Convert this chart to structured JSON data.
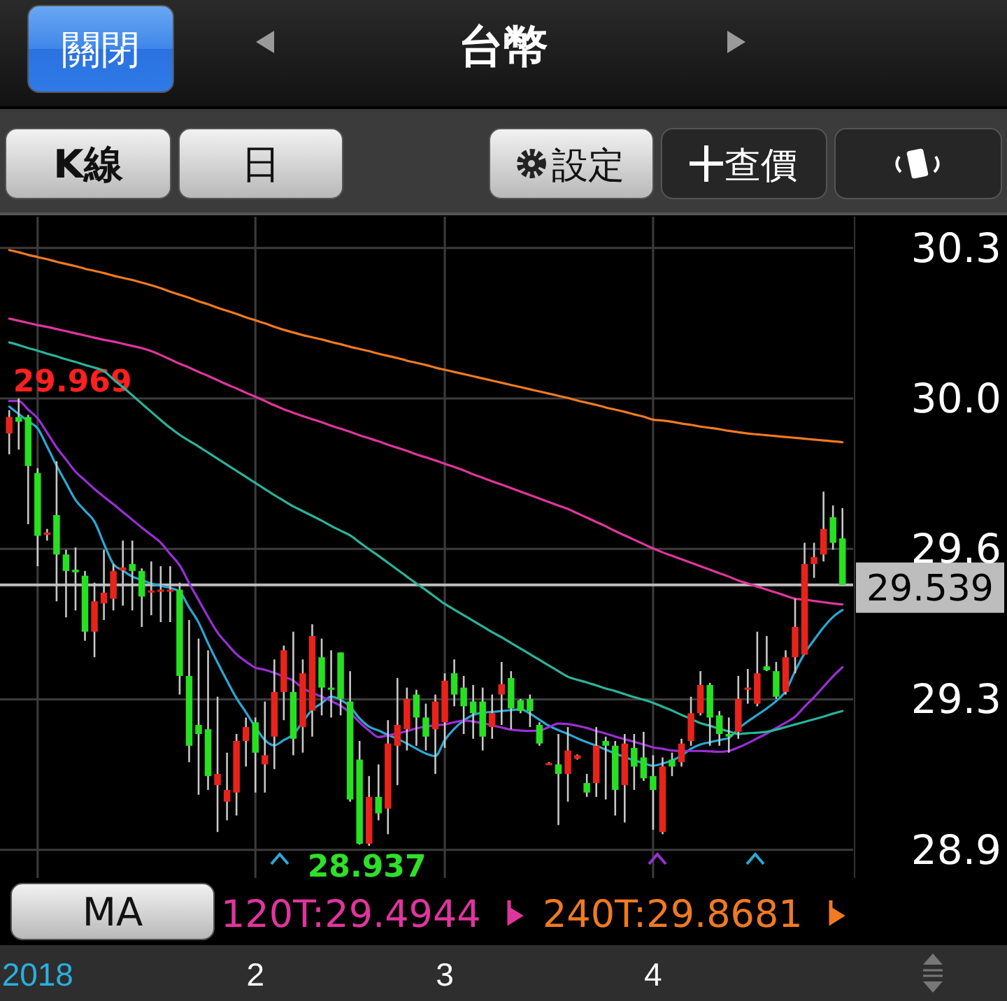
{
  "chart_data": {
    "type": "candlestick",
    "title": "台幣",
    "annotations": [
      "關閉",
      "K線",
      "日",
      "設定",
      "查價",
      "MA",
      "29.969",
      "28.937"
    ],
    "categories": [
      null,
      null,
      null,
      "2018",
      null,
      null,
      null,
      null,
      null,
      null,
      null,
      null,
      null,
      null,
      null,
      null,
      null,
      null,
      null,
      null,
      null,
      null,
      null,
      null,
      null,
      null,
      "2",
      null,
      null,
      null,
      null,
      null,
      null,
      null,
      null,
      null,
      null,
      null,
      null,
      null,
      null,
      null,
      null,
      null,
      null,
      null,
      "3",
      null,
      null,
      null,
      null,
      null,
      null,
      null,
      null,
      null,
      null,
      null,
      null,
      null,
      null,
      null,
      null,
      null,
      null,
      null,
      null,
      null,
      "4",
      null,
      null,
      null,
      null,
      null,
      null,
      null,
      null,
      null,
      null,
      null,
      null,
      null,
      null,
      null,
      null,
      null,
      null,
      null,
      null
    ],
    "ohlc": [
      [
        29.888,
        29.942,
        29.84,
        29.926
      ],
      [
        29.926,
        29.969,
        29.851,
        29.915
      ],
      [
        29.926,
        29.931,
        29.679,
        29.813
      ],
      [
        29.797,
        29.808,
        29.582,
        29.652
      ],
      [
        29.654,
        29.668,
        29.641,
        29.66
      ],
      [
        29.7,
        29.824,
        29.501,
        29.609
      ],
      [
        29.609,
        29.62,
        29.464,
        29.571
      ],
      [
        29.574,
        29.625,
        29.48,
        29.568
      ],
      [
        29.56,
        29.571,
        29.41,
        29.431
      ],
      [
        29.431,
        29.544,
        29.372,
        29.501
      ],
      [
        29.496,
        29.62,
        29.458,
        29.521
      ],
      [
        29.507,
        29.587,
        29.48,
        29.571
      ],
      [
        29.572,
        29.641,
        29.491,
        29.579
      ],
      [
        29.587,
        29.641,
        29.48,
        29.571
      ],
      [
        29.571,
        29.577,
        29.442,
        29.512
      ],
      [
        29.521,
        29.593,
        29.469,
        29.526
      ],
      [
        29.523,
        29.582,
        29.453,
        29.528
      ],
      [
        29.525,
        29.582,
        29.453,
        29.528
      ],
      [
        29.528,
        29.544,
        29.286,
        29.329
      ],
      [
        29.329,
        29.458,
        29.13,
        29.168
      ],
      [
        29.216,
        29.415,
        29.055,
        29.195
      ],
      [
        29.206,
        29.388,
        29.066,
        29.098
      ],
      [
        29.077,
        29.281,
        28.969,
        29.103
      ],
      [
        29.039,
        29.152,
        28.996,
        29.066
      ],
      [
        29.06,
        29.195,
        29.007,
        29.179
      ],
      [
        29.179,
        29.233,
        29.12,
        29.211
      ],
      [
        29.222,
        29.233,
        29.06,
        29.152
      ],
      [
        29.125,
        29.27,
        29.06,
        29.146
      ],
      [
        29.189,
        29.367,
        29.114,
        29.292
      ],
      [
        29.292,
        29.399,
        29.227,
        29.388
      ],
      [
        29.292,
        29.431,
        29.146,
        29.184
      ],
      [
        29.211,
        29.367,
        29.152,
        29.335
      ],
      [
        29.249,
        29.448,
        29.189,
        29.421
      ],
      [
        29.372,
        29.415,
        29.238,
        29.302
      ],
      [
        29.302,
        29.388,
        29.233,
        29.297
      ],
      [
        29.383,
        29.383,
        29.238,
        29.276
      ],
      [
        29.27,
        29.34,
        29.039,
        29.044
      ],
      [
        29.136,
        29.179,
        28.94,
        28.942
      ],
      [
        28.942,
        29.098,
        28.937,
        29.05
      ],
      [
        29.05,
        29.125,
        28.996,
        29.012
      ],
      [
        29.023,
        29.227,
        28.964,
        29.173
      ],
      [
        29.168,
        29.324,
        29.077,
        29.216
      ],
      [
        29.206,
        29.302,
        29.157,
        29.276
      ],
      [
        29.286,
        29.297,
        29.168,
        29.233
      ],
      [
        29.233,
        29.265,
        29.157,
        29.189
      ],
      [
        29.206,
        29.286,
        29.103,
        29.27
      ],
      [
        29.222,
        29.335,
        29.163,
        29.318
      ],
      [
        29.335,
        29.367,
        29.259,
        29.286
      ],
      [
        29.302,
        29.329,
        29.195,
        29.259
      ],
      [
        29.27,
        29.308,
        29.184,
        29.243
      ],
      [
        29.27,
        29.302,
        29.157,
        29.189
      ],
      [
        29.211,
        29.286,
        29.184,
        29.243
      ],
      [
        29.286,
        29.361,
        29.216,
        29.31
      ],
      [
        29.324,
        29.34,
        29.206,
        29.254
      ],
      [
        29.273,
        29.276,
        29.243,
        29.248
      ],
      [
        29.276,
        29.286,
        29.211,
        29.248
      ],
      [
        29.216,
        29.222,
        29.168,
        29.173
      ],
      [
        29.125,
        29.13,
        29.124,
        29.128
      ],
      [
        29.125,
        29.195,
        28.985,
        29.103
      ],
      [
        29.103,
        29.211,
        29.039,
        29.157
      ],
      [
        29.138,
        29.148,
        29.136,
        29.146
      ],
      [
        29.082,
        29.103,
        29.05,
        29.06
      ],
      [
        29.082,
        29.211,
        29.05,
        29.168
      ],
      [
        29.179,
        29.189,
        29.044,
        29.168
      ],
      [
        29.168,
        29.179,
        29.007,
        29.066
      ],
      [
        29.077,
        29.195,
        28.991,
        29.173
      ],
      [
        29.163,
        29.195,
        29.066,
        29.12
      ],
      [
        29.141,
        29.2,
        29.087,
        29.093
      ],
      [
        29.098,
        29.146,
        28.974,
        29.066
      ],
      [
        28.969,
        29.141,
        28.964,
        29.12
      ],
      [
        29.136,
        29.152,
        29.098,
        29.12
      ],
      [
        29.13,
        29.184,
        29.12,
        29.173
      ],
      [
        29.179,
        29.281,
        29.168,
        29.243
      ],
      [
        29.243,
        29.34,
        29.238,
        29.308
      ],
      [
        29.308,
        29.313,
        29.168,
        29.233
      ],
      [
        29.238,
        29.248,
        29.168,
        29.195
      ],
      [
        29.195,
        29.233,
        29.152,
        29.189
      ],
      [
        29.2,
        29.329,
        29.184,
        29.276
      ],
      [
        29.297,
        29.345,
        29.265,
        29.302
      ],
      [
        29.265,
        29.431,
        29.259,
        29.335
      ],
      [
        29.351,
        29.421,
        29.34,
        29.342
      ],
      [
        29.34,
        29.361,
        29.276,
        29.281
      ],
      [
        29.292,
        29.388,
        29.286,
        29.372
      ],
      [
        29.372,
        29.507,
        29.335,
        29.442
      ],
      [
        29.378,
        29.636,
        29.378,
        29.587
      ],
      [
        29.587,
        29.636,
        29.555,
        29.603
      ],
      [
        29.609,
        29.754,
        29.593,
        29.668
      ],
      [
        29.695,
        29.722,
        29.62,
        29.636
      ],
      [
        29.646,
        29.716,
        29.539,
        29.539
      ]
    ],
    "series": [
      {
        "type": "line",
        "color": "#2aa8d4",
        "values": [
          29.95,
          29.933,
          29.916,
          29.9,
          29.858,
          29.814,
          29.774,
          29.735,
          29.71,
          29.685,
          29.634,
          29.587,
          29.572,
          29.558,
          29.55,
          29.542,
          29.537,
          29.532,
          29.523,
          29.487,
          29.452,
          29.404,
          29.36,
          29.318,
          29.278,
          29.245,
          29.211,
          29.181,
          29.169,
          29.181,
          29.194,
          29.223,
          29.251,
          29.266,
          29.281,
          29.274,
          29.258,
          29.231,
          29.212,
          29.203,
          29.193,
          29.184,
          29.173,
          29.161,
          29.15,
          29.144,
          29.181,
          29.207,
          29.226,
          29.239,
          29.244,
          29.246,
          29.248,
          29.25,
          29.252,
          29.242,
          29.228,
          29.214,
          29.204,
          29.195,
          29.185,
          29.176,
          29.168,
          29.159,
          29.15,
          29.142,
          29.134,
          29.128,
          29.122,
          29.127,
          29.134,
          29.145,
          29.161,
          29.171,
          29.176,
          29.181,
          29.186,
          29.207,
          29.224,
          29.239,
          29.254,
          29.271,
          29.294,
          29.34,
          29.381,
          29.412,
          29.441,
          29.465,
          29.481
        ]
      },
      {
        "type": "line",
        "color": "#9a2fd6",
        "values": [
          29.963,
          29.963,
          29.943,
          29.923,
          29.89,
          29.856,
          29.828,
          29.8,
          29.78,
          29.76,
          29.742,
          29.725,
          29.707,
          29.689,
          29.671,
          29.654,
          29.636,
          29.61,
          29.584,
          29.543,
          29.504,
          29.465,
          29.429,
          29.403,
          29.379,
          29.362,
          29.348,
          29.343,
          29.336,
          29.327,
          29.318,
          29.301,
          29.29,
          29.281,
          29.271,
          29.26,
          29.244,
          29.222,
          29.203,
          29.188,
          29.192,
          29.196,
          29.202,
          29.208,
          29.212,
          29.215,
          29.217,
          29.222,
          29.226,
          29.224,
          29.22,
          29.215,
          29.21,
          29.205,
          29.203,
          29.202,
          29.203,
          29.211,
          29.219,
          29.218,
          29.214,
          29.209,
          29.202,
          29.196,
          29.189,
          29.183,
          29.177,
          29.171,
          29.164,
          29.161,
          29.157,
          29.156,
          29.156,
          29.156,
          29.155,
          29.154,
          29.156,
          29.164,
          29.174,
          29.185,
          29.196,
          29.209,
          29.221,
          29.235,
          29.258,
          29.28,
          29.304,
          29.328,
          29.349
        ]
      },
      {
        "type": "line",
        "color": "#2bb39a",
        "values": [
          30.098,
          30.092,
          30.085,
          30.079,
          30.072,
          30.066,
          30.059,
          30.053,
          30.046,
          30.04,
          30.032,
          30.013,
          29.995,
          29.976,
          29.957,
          29.938,
          29.919,
          29.901,
          29.885,
          29.871,
          29.858,
          29.844,
          29.83,
          29.816,
          29.802,
          29.788,
          29.774,
          29.76,
          29.746,
          29.733,
          29.72,
          29.709,
          29.698,
          29.687,
          29.675,
          29.664,
          29.653,
          29.637,
          29.621,
          29.606,
          29.59,
          29.574,
          29.558,
          29.542,
          29.527,
          29.511,
          29.495,
          29.482,
          29.469,
          29.456,
          29.443,
          29.43,
          29.418,
          29.405,
          29.392,
          29.379,
          29.366,
          29.353,
          29.34,
          29.327,
          29.32,
          29.314,
          29.307,
          29.3,
          29.294,
          29.287,
          29.28,
          29.274,
          29.267,
          29.258,
          29.249,
          29.239,
          29.23,
          29.22,
          29.214,
          29.207,
          29.201,
          29.195,
          29.197,
          29.198,
          29.2,
          29.205,
          29.211,
          29.217,
          29.223,
          29.229,
          29.235,
          29.242,
          29.248
        ]
      },
      {
        "type": "line",
        "name": "120T:29.4944",
        "color": "#e0359e",
        "values": [
          30.153,
          30.148,
          30.143,
          30.138,
          30.134,
          30.129,
          30.124,
          30.119,
          30.114,
          30.109,
          30.104,
          30.1,
          30.095,
          30.09,
          30.085,
          30.078,
          30.069,
          30.059,
          30.049,
          30.04,
          30.03,
          30.021,
          30.011,
          30.001,
          29.992,
          29.982,
          29.973,
          29.963,
          29.953,
          29.944,
          29.936,
          29.928,
          29.921,
          29.914,
          29.906,
          29.899,
          29.892,
          29.884,
          29.877,
          29.87,
          29.862,
          29.855,
          29.848,
          29.84,
          29.833,
          29.826,
          29.818,
          29.811,
          29.803,
          29.794,
          29.786,
          29.778,
          29.77,
          29.762,
          29.754,
          29.746,
          29.738,
          29.73,
          29.722,
          29.714,
          29.704,
          29.694,
          29.684,
          29.674,
          29.663,
          29.653,
          29.643,
          29.633,
          29.623,
          29.614,
          29.606,
          29.598,
          29.59,
          29.582,
          29.574,
          29.566,
          29.558,
          29.549,
          29.542,
          29.535,
          29.528,
          29.521,
          29.514,
          29.507,
          29.505,
          29.502,
          29.499,
          29.496,
          29.494
        ]
      },
      {
        "type": "line",
        "name": "240T:29.8681",
        "color": "#f07a22",
        "values": [
          30.311,
          30.306,
          30.3,
          30.295,
          30.29,
          30.284,
          30.279,
          30.274,
          30.268,
          30.263,
          30.258,
          30.252,
          30.247,
          30.242,
          30.236,
          30.23,
          30.223,
          30.215,
          30.208,
          30.201,
          30.193,
          30.186,
          30.178,
          30.171,
          30.164,
          30.156,
          30.149,
          30.142,
          30.134,
          30.127,
          30.121,
          30.115,
          30.11,
          30.105,
          30.099,
          30.094,
          30.088,
          30.083,
          30.078,
          30.072,
          30.067,
          30.062,
          30.056,
          30.051,
          30.046,
          30.04,
          30.035,
          30.03,
          30.025,
          30.02,
          30.015,
          30.01,
          30.005,
          30.0,
          29.995,
          29.99,
          29.985,
          29.98,
          29.975,
          29.97,
          29.964,
          29.959,
          29.954,
          29.948,
          29.943,
          29.938,
          29.932,
          29.927,
          29.92,
          29.918,
          29.915,
          29.911,
          29.908,
          29.904,
          29.901,
          29.898,
          29.894,
          29.891,
          29.888,
          29.886,
          29.884,
          29.882,
          29.88,
          29.878,
          29.876,
          29.874,
          29.872,
          29.87,
          29.868
        ]
      }
    ],
    "ylim": [
      28.863,
      30.388
    ],
    "yticks": [
      {
        "value": 30.316,
        "label": "30.3"
      },
      {
        "value": 29.969,
        "label": "30.0"
      },
      {
        "value": 29.622,
        "label": "29.6"
      },
      {
        "value": 29.275,
        "label": "29.3"
      },
      {
        "value": 28.928,
        "label": "28.9"
      }
    ],
    "ref_lines": [
      {
        "axis": "y",
        "value": 29.539,
        "label": "29.539",
        "color": "#bdbdbd"
      }
    ],
    "grid": true,
    "legend": "bottom"
  }
}
